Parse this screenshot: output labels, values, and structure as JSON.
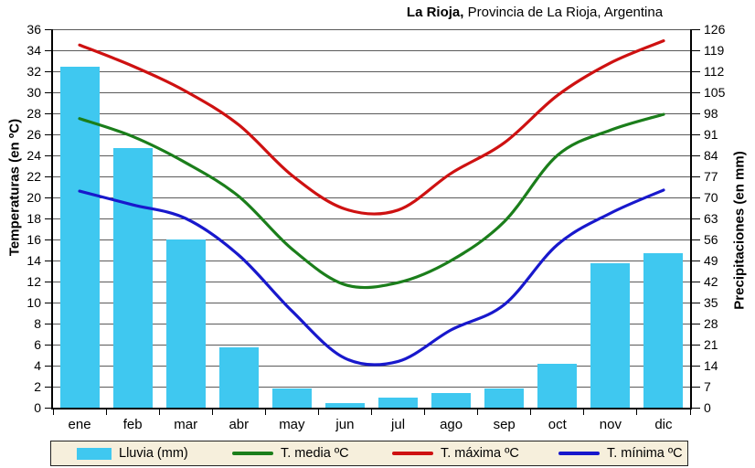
{
  "title": {
    "bold": "La Rioja,",
    "rest": " Provincia de La Rioja, Argentina"
  },
  "colors": {
    "rain_bar": "#3fc8f0",
    "t_media": "#1b7e1b",
    "t_maxima": "#ce1111",
    "t_minima": "#1818cc",
    "gridline": "#5a5a5a",
    "axis": "#000000",
    "legend_background": "#f6efdc"
  },
  "chart_data": {
    "type": "combo-bar-line-climograph",
    "title": "La Rioja, Provincia de La Rioja, Argentina",
    "categories": [
      "ene",
      "feb",
      "mar",
      "abr",
      "may",
      "jun",
      "jul",
      "ago",
      "sep",
      "oct",
      "nov",
      "dic"
    ],
    "left_axis": {
      "title": "Temperaturas (en ºC)",
      "min": 0,
      "max": 36,
      "step": 2,
      "ticks": [
        36,
        34,
        32,
        30,
        28,
        26,
        24,
        22,
        20,
        18,
        16,
        14,
        12,
        10,
        8,
        6,
        4,
        2,
        0
      ]
    },
    "right_axis": {
      "title": "Precipitaciones (en mm)",
      "min": 0,
      "max": 126,
      "step": 7,
      "ticks": [
        126,
        119,
        112,
        105,
        98,
        91,
        84,
        77,
        70,
        63,
        56,
        49,
        42,
        35,
        28,
        21,
        14,
        7,
        0
      ]
    },
    "grid": "horizontal",
    "legend_position": "bottom",
    "series": [
      {
        "name": "Lluvia (mm)",
        "type": "bar",
        "axis": "right",
        "color": "#3fc8f0",
        "values": [
          113.5,
          86.5,
          56,
          20,
          6.5,
          1.5,
          3.5,
          5,
          6.5,
          14.5,
          48,
          51.5
        ]
      },
      {
        "name": "T. media ºC",
        "type": "line",
        "axis": "left",
        "color": "#1b7e1b",
        "values": [
          27.5,
          25.8,
          23.3,
          20.1,
          15.1,
          11.7,
          11.9,
          14.0,
          17.7,
          24.0,
          26.4,
          27.9
        ]
      },
      {
        "name": "T. máxima ºC",
        "type": "line",
        "axis": "left",
        "color": "#ce1111",
        "values": [
          34.5,
          32.5,
          30.1,
          26.9,
          22.1,
          18.9,
          18.8,
          22.3,
          25.2,
          29.7,
          32.8,
          34.9
        ]
      },
      {
        "name": "T. mínima ºC",
        "type": "line",
        "axis": "left",
        "color": "#1818cc",
        "values": [
          20.6,
          19.3,
          18.0,
          14.5,
          9.2,
          4.7,
          4.4,
          7.4,
          9.8,
          15.5,
          18.5,
          20.7
        ]
      }
    ]
  }
}
